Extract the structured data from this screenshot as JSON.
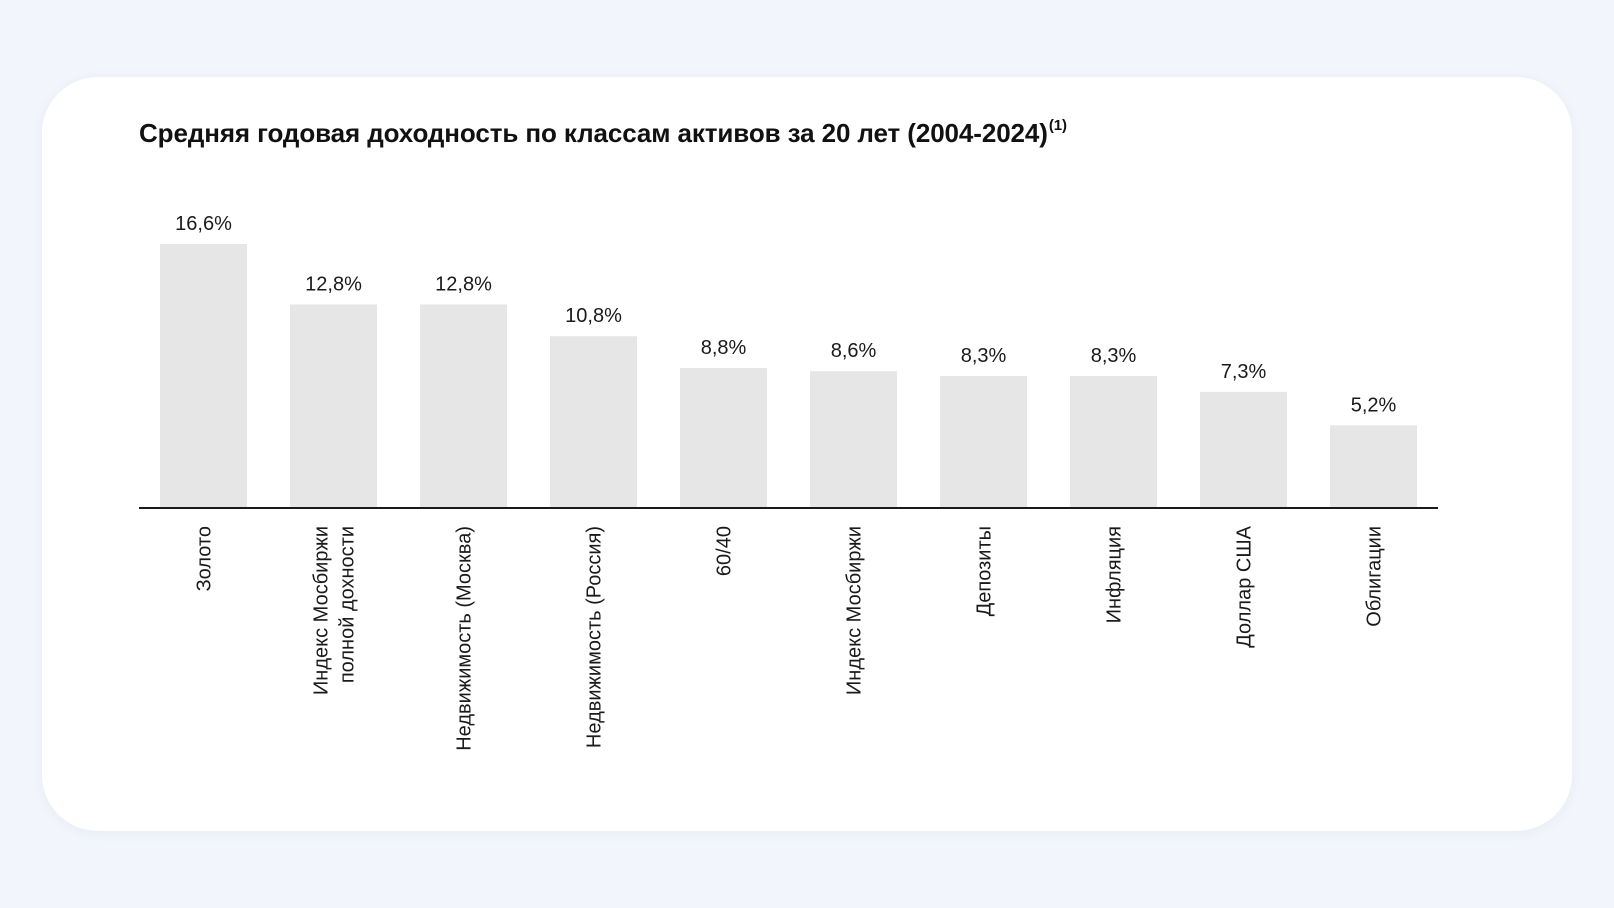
{
  "chart_data": {
    "type": "bar",
    "title": "Средняя годовая доходность по классам активов за 20 лет (2004-2024)",
    "title_superscript": "(1)",
    "categories": [
      [
        "Золото"
      ],
      [
        "Индекс Мосбиржи",
        "полной дохности"
      ],
      [
        "Недвижимость (Москва)"
      ],
      [
        "Недвижимость (Россия)"
      ],
      [
        "60/40"
      ],
      [
        "Индекс Мосбиржи"
      ],
      [
        "Депозиты"
      ],
      [
        "Инфляция"
      ],
      [
        "Доллар США"
      ],
      [
        "Облигации"
      ]
    ],
    "values": [
      16.6,
      12.8,
      12.8,
      10.8,
      8.8,
      8.6,
      8.3,
      8.3,
      7.3,
      5.2
    ],
    "value_labels": [
      "16,6%",
      "12,8%",
      "12,8%",
      "10,8%",
      "8,8%",
      "8,6%",
      "8,3%",
      "8,3%",
      "7,3%",
      "5,2%"
    ],
    "xlabel": "",
    "ylabel": "",
    "ylim": [
      0,
      16.6
    ],
    "grid": false,
    "legend": "none",
    "category_label_orientation": "vertical",
    "colors": {
      "bar": "#e6e6e6",
      "axis": "#1a1a1a",
      "text": "#1a1a1a",
      "card": "#ffffff",
      "page": "#f2f5fb"
    }
  }
}
